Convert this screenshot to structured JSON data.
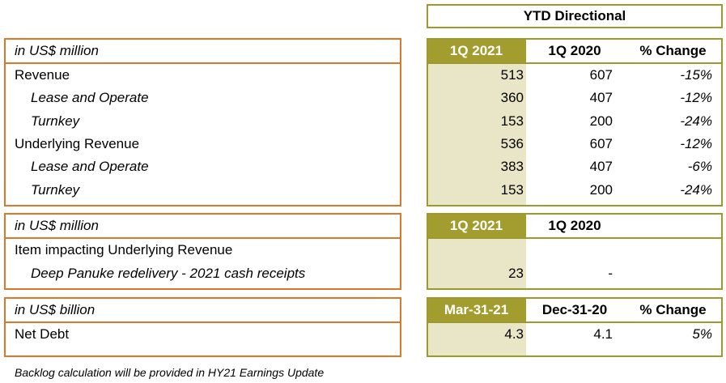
{
  "header": {
    "title": "YTD Directional"
  },
  "tables": [
    {
      "unit": "in US$ million",
      "columns": [
        "1Q 2021",
        "1Q 2020",
        "% Change"
      ],
      "rows": [
        {
          "label": "Revenue",
          "indent": false,
          "cells": [
            "513",
            "607",
            "-15%"
          ]
        },
        {
          "label": "Lease and Operate",
          "indent": true,
          "cells": [
            "360",
            "407",
            "-12%"
          ]
        },
        {
          "label": "Turnkey",
          "indent": true,
          "cells": [
            "153",
            "200",
            "-24%"
          ]
        },
        {
          "label": "Underlying Revenue",
          "indent": false,
          "cells": [
            "536",
            "607",
            "-12%"
          ]
        },
        {
          "label": "Lease and Operate",
          "indent": true,
          "cells": [
            "383",
            "407",
            "-6%"
          ]
        },
        {
          "label": "Turnkey",
          "indent": true,
          "cells": [
            "153",
            "200",
            "-24%"
          ]
        }
      ]
    },
    {
      "unit": "in US$ million",
      "columns": [
        "1Q 2021",
        "1Q 2020"
      ],
      "rows": [
        {
          "label": "Item impacting Underlying Revenue",
          "indent": false,
          "cells": []
        },
        {
          "label": "Deep Panuke redelivery - 2021 cash receipts",
          "indent": true,
          "cells": [
            "23",
            "-"
          ]
        }
      ]
    },
    {
      "unit": "in US$ billion",
      "columns": [
        "Mar-31-21",
        "Dec-31-20",
        "% Change"
      ],
      "rows": [
        {
          "label": "Net Debt",
          "indent": false,
          "cells": [
            "4.3",
            "4.1",
            "5%"
          ]
        }
      ]
    }
  ],
  "footnote": "Backlog calculation will be provided in HY21 Earnings Update"
}
